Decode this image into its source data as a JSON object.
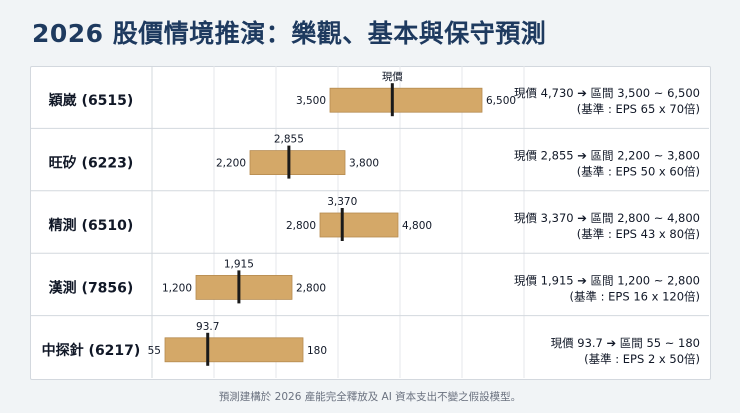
{
  "title": "2026 股價情境推演：樂觀、基本與保守預測",
  "footnote": "預測建構於 2026 產能完全釋放及 AI 資本支出不變之假設模型。",
  "colors": {
    "bar": "#d4a868",
    "bar_border": "#b58a4f",
    "marker": "#1a1a1a",
    "title": "#1e3a5f"
  },
  "chart_data": {
    "type": "range-bar",
    "current_label": "現價",
    "rows": [
      {
        "name": "穎崴 (6515)",
        "low": 3500,
        "high": 6500,
        "current": 4730,
        "low_label": "3,500",
        "high_label": "6,500",
        "current_label": null,
        "note1": "現價 4,730 ➔ 區間 3,500 ~ 6,500",
        "note2": "(基準 : EPS 65 x 70倍)"
      },
      {
        "name": "旺矽 (6223)",
        "low": 2200,
        "high": 3800,
        "current": 2855,
        "low_label": "2,200",
        "high_label": "3,800",
        "current_label": "2,855",
        "note1": "現價 2,855 ➔ 區間 2,200 ~ 3,800",
        "note2": "(基準 : EPS 50 x 60倍)"
      },
      {
        "name": "精測 (6510)",
        "low": 2800,
        "high": 4800,
        "current": 3370,
        "low_label": "2,800",
        "high_label": "4,800",
        "current_label": "3,370",
        "note1": "現價 3,370 ➔ 區間 2,800 ~ 4,800",
        "note2": "(基準 : EPS 43 x 80倍)"
      },
      {
        "name": "漢測 (7856)",
        "low": 1200,
        "high": 2800,
        "current": 1915,
        "low_label": "1,200",
        "high_label": "2,800",
        "current_label": "1,915",
        "note1": "現價 1,915 ➔ 區間 1,200 ~ 2,800",
        "note2": "(基準 : EPS 16 x 120倍)"
      },
      {
        "name": "中探針 (6217)",
        "low": 55,
        "high": 180,
        "current": 93.7,
        "low_label": "55",
        "high_label": "180",
        "current_label": "93.7",
        "note1": "現價 93.7 ➔ 區間 55 ~ 180",
        "note2": "(基準 : EPS 2 x 50倍)"
      }
    ]
  }
}
